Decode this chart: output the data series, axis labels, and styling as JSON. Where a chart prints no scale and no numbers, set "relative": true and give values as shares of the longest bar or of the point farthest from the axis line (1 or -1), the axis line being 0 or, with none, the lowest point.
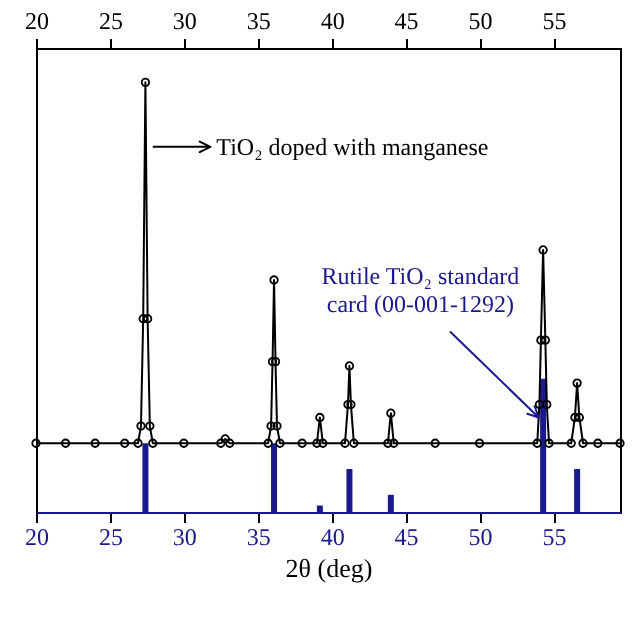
{
  "chart_data": {
    "type": "line",
    "xlabel": "2θ (deg)",
    "relative": true,
    "xlim": [
      20,
      59.5
    ],
    "xticks": [
      20,
      25,
      30,
      35,
      40,
      45,
      50,
      55
    ],
    "x2lim": [
      20,
      59.5
    ],
    "x2ticks": [
      20,
      25,
      30,
      35,
      40,
      45,
      50,
      55
    ],
    "marker": "circle",
    "line_style": "solid",
    "series": [
      {
        "color": "#000000",
        "x": [
          20,
          22,
          24,
          26,
          26.9,
          27.1,
          27.25,
          27.4,
          27.55,
          27.7,
          27.9,
          30,
          32.5,
          32.8,
          33.1,
          35.7,
          35.9,
          36.0,
          36.1,
          36.2,
          36.3,
          36.5,
          38,
          39.0,
          39.2,
          39.4,
          40.9,
          41.1,
          41.2,
          41.3,
          41.5,
          43.8,
          44.0,
          44.2,
          47,
          50,
          53.9,
          54.05,
          54.15,
          54.3,
          54.45,
          54.55,
          54.7,
          56.2,
          56.45,
          56.6,
          56.75,
          57.0,
          58,
          59.5
        ],
        "values": [
          0.16,
          0.16,
          0.16,
          0.16,
          0.16,
          0.2,
          0.45,
          1.0,
          0.45,
          0.2,
          0.16,
          0.16,
          0.16,
          0.17,
          0.16,
          0.16,
          0.2,
          0.35,
          0.54,
          0.35,
          0.2,
          0.16,
          0.16,
          0.16,
          0.22,
          0.16,
          0.16,
          0.25,
          0.34,
          0.25,
          0.16,
          0.16,
          0.23,
          0.16,
          0.16,
          0.16,
          0.16,
          0.25,
          0.4,
          0.61,
          0.4,
          0.25,
          0.16,
          0.16,
          0.22,
          0.3,
          0.22,
          0.16,
          0.16,
          0.16
        ]
      },
      {
        "type": "bar",
        "color": "#1a1a8c",
        "x": [
          27.4,
          36.1,
          39.2,
          41.2,
          44.0,
          54.3,
          56.6
        ],
        "values": [
          0.16,
          0.16,
          0.015,
          0.1,
          0.04,
          0.31,
          0.1
        ]
      }
    ],
    "annotations": [
      {
        "text": "TiO₂ doped with manganese",
        "x": 27.4,
        "y": 0.85
      },
      {
        "text": "Rutile TiO₂ standard card (00-001-1292)",
        "x": 54.0,
        "y": 0.22
      }
    ]
  }
}
